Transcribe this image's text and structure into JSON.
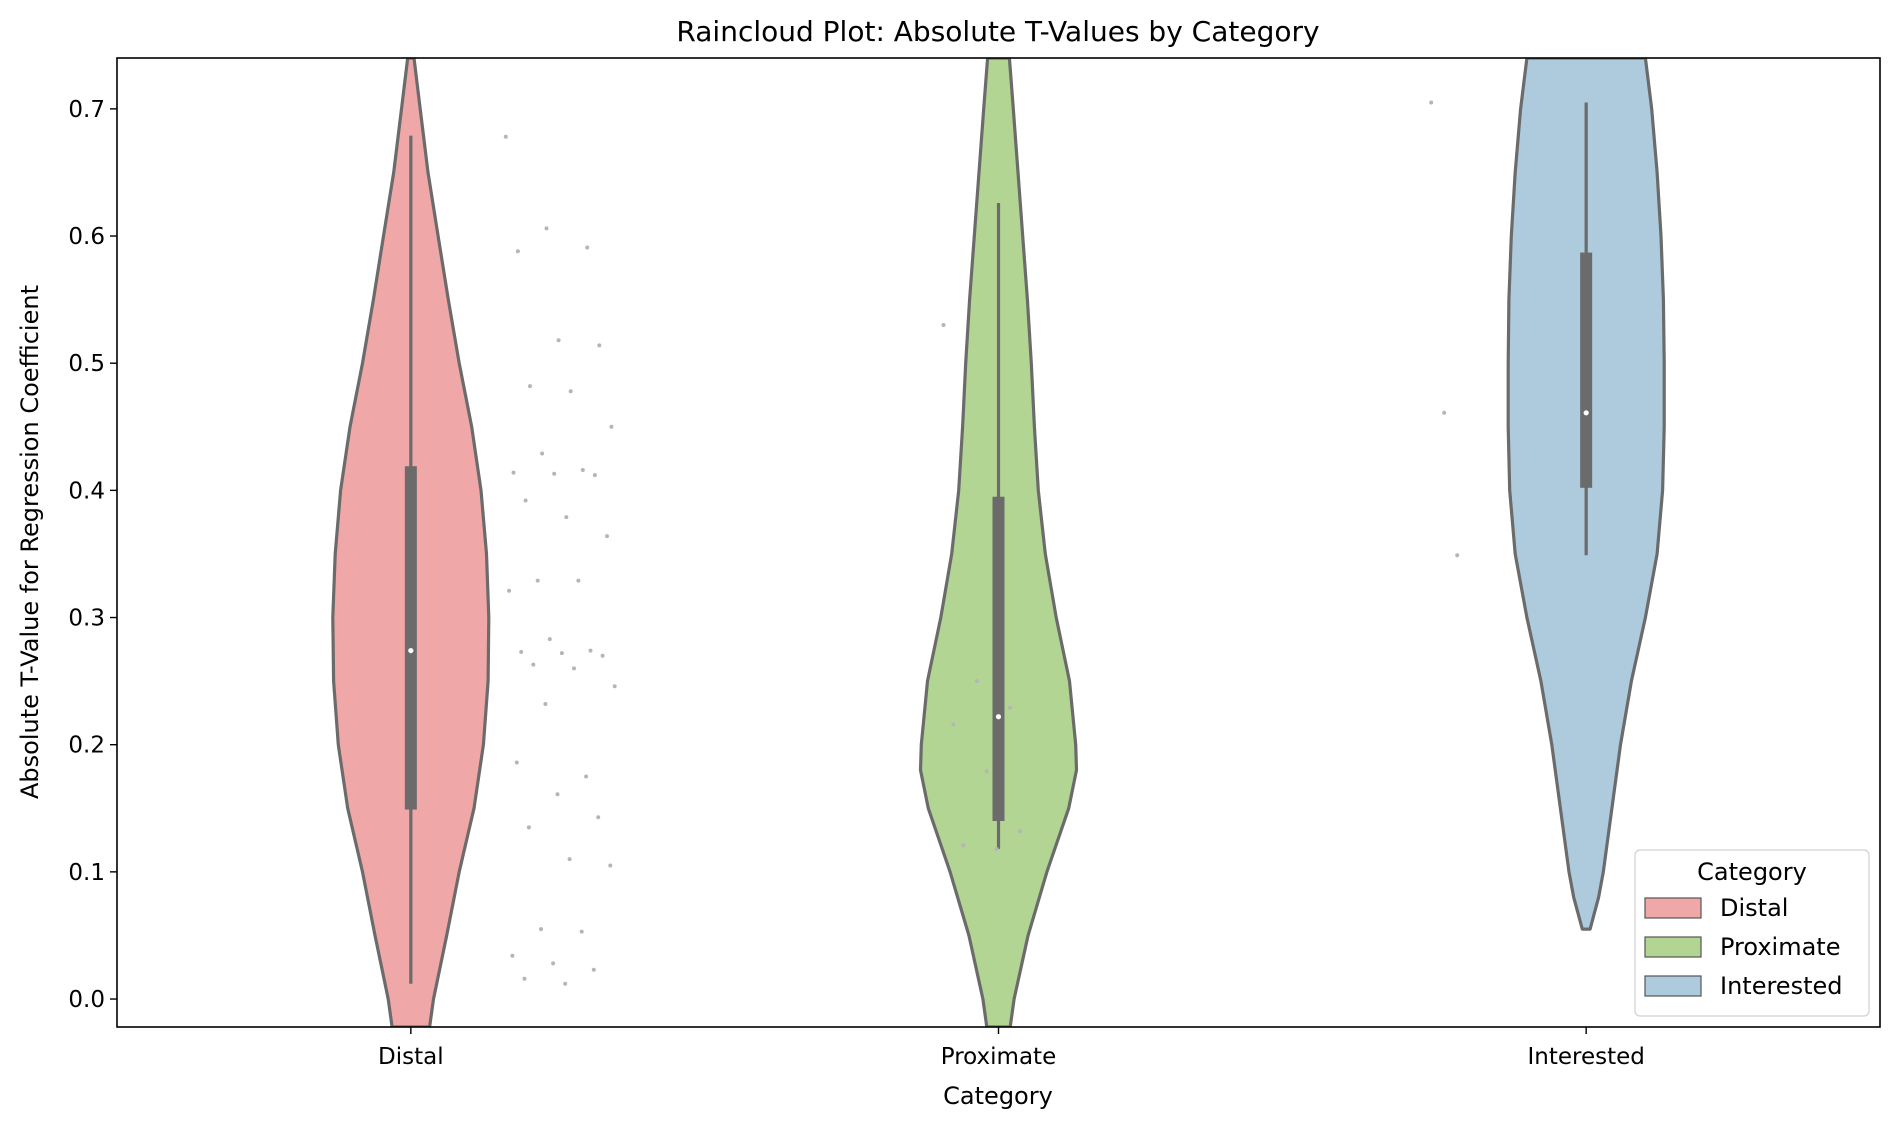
{
  "chart_data": {
    "type": "raincloud",
    "title": "Raincloud Plot: Absolute T-Values by Category",
    "xlabel": "Category",
    "ylabel": "Absolute T-Value for Regression Coefficient",
    "ylim": [
      -0.022,
      0.74
    ],
    "yticks": [
      0.0,
      0.1,
      0.2,
      0.3,
      0.4,
      0.5,
      0.6,
      0.7
    ],
    "ytick_labels": [
      "0.0",
      "0.1",
      "0.2",
      "0.3",
      "0.4",
      "0.5",
      "0.6",
      "0.7"
    ],
    "categories": [
      "Distal",
      "Proximate",
      "Interested"
    ],
    "grid": false,
    "legend": {
      "title": "Category",
      "placement": "lower-right",
      "entries": [
        "Distal",
        "Proximate",
        "Interested"
      ]
    },
    "series": [
      {
        "name": "Distal",
        "color": "#f0a7a7",
        "box": {
          "whisker_low": 0.012,
          "q1": 0.149,
          "median": 0.274,
          "q3": 0.419,
          "whisker_high": 0.679
        },
        "violin_profile": [
          [
            -0.022,
            0.24
          ],
          [
            0.0,
            0.29
          ],
          [
            0.05,
            0.46
          ],
          [
            0.1,
            0.62
          ],
          [
            0.15,
            0.81
          ],
          [
            0.2,
            0.93
          ],
          [
            0.25,
            0.99
          ],
          [
            0.3,
            1.0
          ],
          [
            0.35,
            0.97
          ],
          [
            0.4,
            0.9
          ],
          [
            0.45,
            0.78
          ],
          [
            0.5,
            0.62
          ],
          [
            0.55,
            0.48
          ],
          [
            0.6,
            0.35
          ],
          [
            0.65,
            0.22
          ],
          [
            0.7,
            0.12
          ],
          [
            0.74,
            0.04
          ]
        ],
        "points": [
          0.678,
          0.606,
          0.591,
          0.588,
          0.518,
          0.514,
          0.482,
          0.478,
          0.45,
          0.429,
          0.416,
          0.414,
          0.413,
          0.412,
          0.392,
          0.379,
          0.364,
          0.329,
          0.329,
          0.321,
          0.283,
          0.274,
          0.273,
          0.272,
          0.27,
          0.263,
          0.26,
          0.246,
          0.232,
          0.175,
          0.186,
          0.161,
          0.143,
          0.135,
          0.11,
          0.105,
          0.055,
          0.053,
          0.034,
          0.028,
          0.023,
          0.016,
          0.012
        ]
      },
      {
        "name": "Proximate",
        "color": "#b3d593",
        "box": {
          "whisker_low": 0.118,
          "q1": 0.14,
          "median": 0.222,
          "q3": 0.395,
          "whisker_high": 0.626
        },
        "violin_profile": [
          [
            -0.022,
            0.15
          ],
          [
            0.0,
            0.2
          ],
          [
            0.05,
            0.38
          ],
          [
            0.1,
            0.62
          ],
          [
            0.15,
            0.9
          ],
          [
            0.18,
            1.0
          ],
          [
            0.2,
            0.99
          ],
          [
            0.25,
            0.91
          ],
          [
            0.3,
            0.74
          ],
          [
            0.35,
            0.6
          ],
          [
            0.4,
            0.51
          ],
          [
            0.45,
            0.46
          ],
          [
            0.5,
            0.42
          ],
          [
            0.55,
            0.37
          ],
          [
            0.6,
            0.31
          ],
          [
            0.65,
            0.25
          ],
          [
            0.7,
            0.19
          ],
          [
            0.74,
            0.14
          ]
        ],
        "points": [
          0.53,
          0.25,
          0.229,
          0.216,
          0.179,
          0.132,
          0.121,
          0.118
        ]
      },
      {
        "name": "Interested",
        "color": "#aecbde",
        "box": {
          "whisker_low": 0.349,
          "q1": 0.402,
          "median": 0.461,
          "q3": 0.587,
          "whisker_high": 0.705
        },
        "violin_profile": [
          [
            0.055,
            0.05
          ],
          [
            0.08,
            0.16
          ],
          [
            0.1,
            0.22
          ],
          [
            0.15,
            0.33
          ],
          [
            0.2,
            0.44
          ],
          [
            0.25,
            0.58
          ],
          [
            0.3,
            0.76
          ],
          [
            0.35,
            0.91
          ],
          [
            0.4,
            0.98
          ],
          [
            0.45,
            1.0
          ],
          [
            0.5,
            1.0
          ],
          [
            0.55,
            0.99
          ],
          [
            0.6,
            0.96
          ],
          [
            0.65,
            0.91
          ],
          [
            0.7,
            0.84
          ],
          [
            0.74,
            0.76
          ]
        ],
        "points": [
          0.705,
          0.461,
          0.349
        ]
      }
    ]
  }
}
